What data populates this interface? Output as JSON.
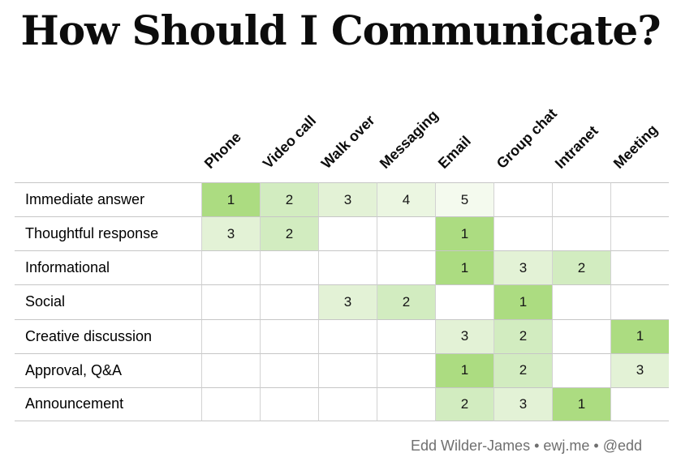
{
  "title": "How Should I Communicate?",
  "footer": {
    "credit": "Edd Wilder-James • ewj.me • @edd"
  },
  "chart_data": {
    "type": "heatmap",
    "title": "How Should I Communicate?",
    "columns": [
      "Phone",
      "Video call",
      "Walk over",
      "Messaging",
      "Email",
      "Group chat",
      "Intranet",
      "Meeting"
    ],
    "rows": [
      "Immediate answer",
      "Thoughtful response",
      "Informational",
      "Social",
      "Creative discussion",
      "Approval, Q&A",
      "Announcement"
    ],
    "values": [
      [
        1,
        2,
        3,
        4,
        5,
        null,
        null,
        null
      ],
      [
        3,
        2,
        null,
        null,
        1,
        null,
        null,
        null
      ],
      [
        null,
        null,
        null,
        null,
        1,
        3,
        2,
        null
      ],
      [
        null,
        null,
        3,
        2,
        null,
        1,
        null,
        null
      ],
      [
        null,
        null,
        null,
        null,
        3,
        2,
        null,
        1
      ],
      [
        null,
        null,
        null,
        null,
        1,
        2,
        null,
        3
      ],
      [
        null,
        null,
        null,
        null,
        2,
        3,
        1,
        null
      ]
    ],
    "value_colors": {
      "1": "#acdc81",
      "2": "#d2ecc0",
      "3": "#e3f2d6",
      "4": "#ebf6e1",
      "5": "#f4faee"
    },
    "empty_color": "#ffffff",
    "grid": true,
    "legend": "none"
  }
}
